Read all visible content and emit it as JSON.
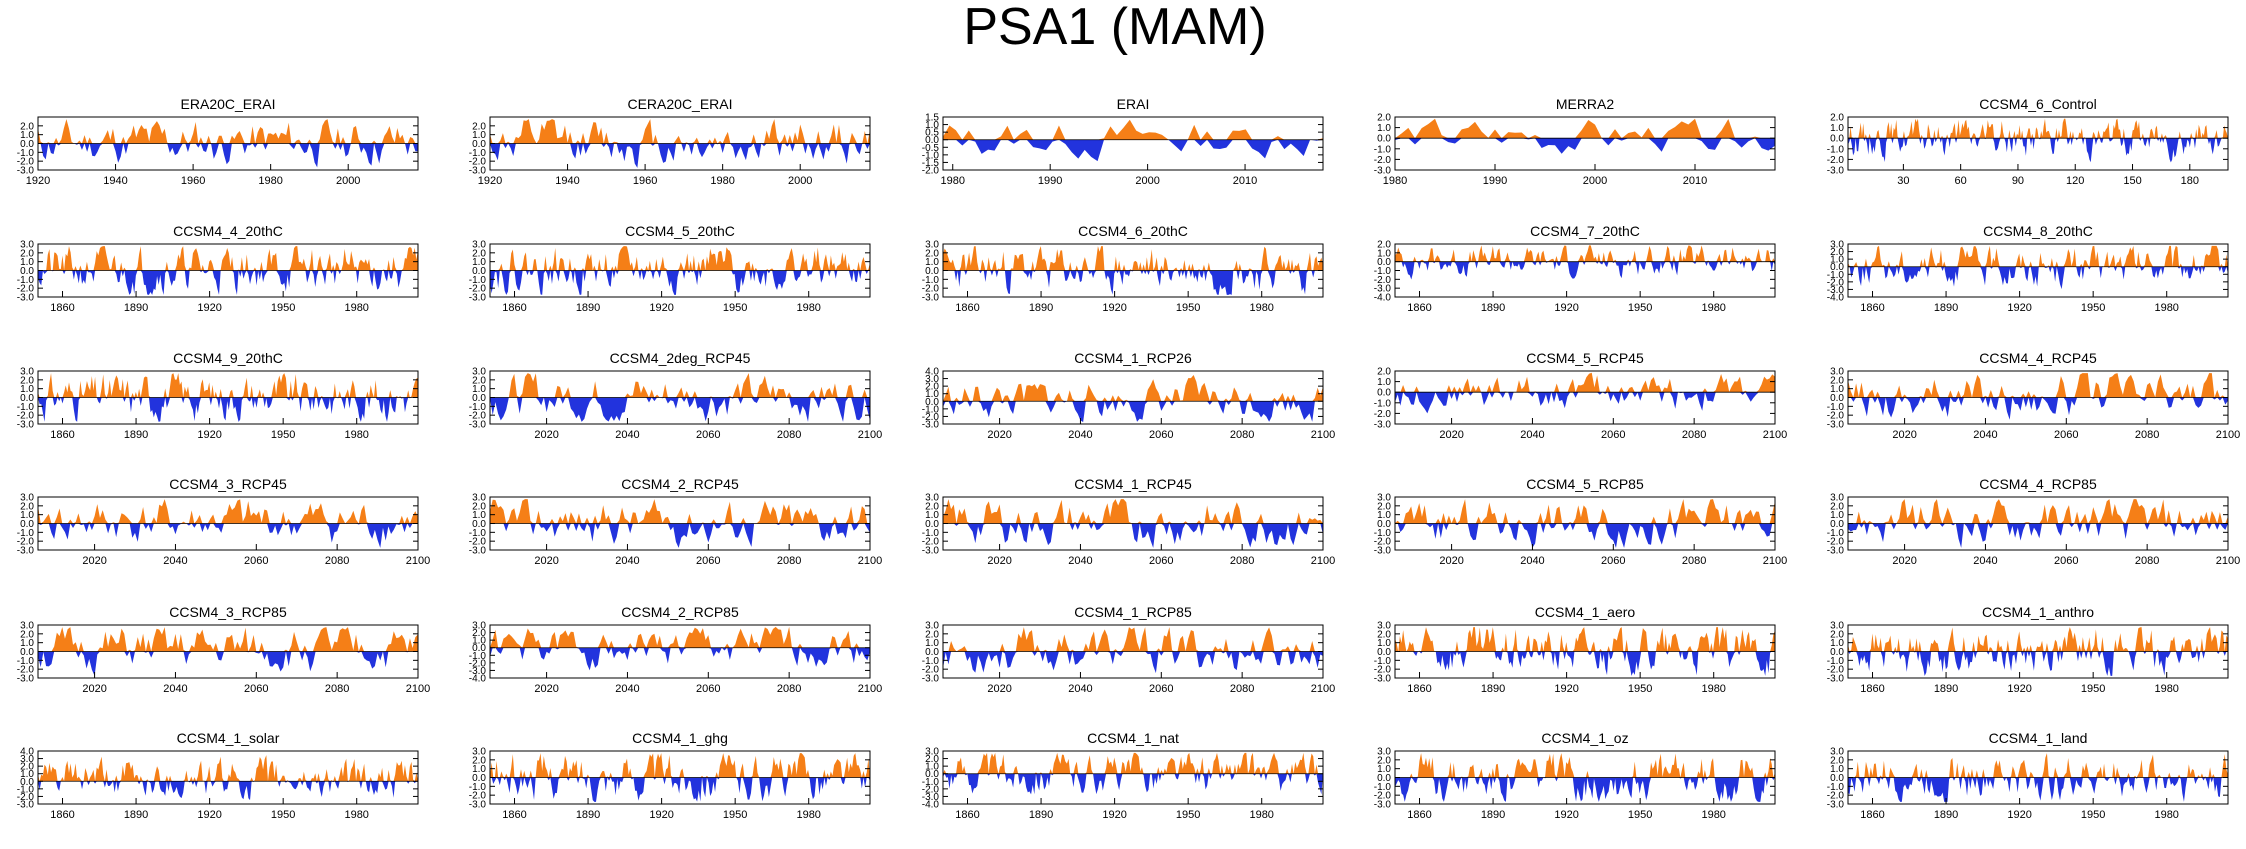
{
  "figure_title": "PSA1 (MAM)",
  "colors": {
    "positive": "#F57F17",
    "negative": "#2233DD",
    "axis": "#000000"
  },
  "chart_data": [
    {
      "type": "area",
      "title": "ERA20C_ERAI",
      "x_start": 1920,
      "x_end": 2018,
      "ylim": [
        -3,
        3
      ],
      "yticks": [
        -3,
        -2,
        -1,
        0,
        1,
        2
      ],
      "xticks": [
        1920,
        1940,
        1960,
        1980,
        2000
      ],
      "series_seed": 11
    },
    {
      "type": "area",
      "title": "CERA20C_ERAI",
      "x_start": 1920,
      "x_end": 2018,
      "ylim": [
        -3,
        3
      ],
      "yticks": [
        -3,
        -2,
        -1,
        0,
        1,
        2
      ],
      "xticks": [
        1920,
        1940,
        1960,
        1980,
        2000
      ],
      "series_seed": 12
    },
    {
      "type": "area",
      "title": "ERAI",
      "x_start": 1979,
      "x_end": 2018,
      "ylim": [
        -2,
        1.5
      ],
      "yticks": [
        -2,
        -1.5,
        -1,
        -0.5,
        0,
        0.5,
        1,
        1.5
      ],
      "xticks": [
        1980,
        1990,
        2000,
        2010
      ],
      "series_seed": 13
    },
    {
      "type": "area",
      "title": "MERRA2",
      "x_start": 1980,
      "x_end": 2018,
      "ylim": [
        -3,
        2
      ],
      "yticks": [
        -3,
        -2,
        -1,
        0,
        1,
        2
      ],
      "xticks": [
        1980,
        1990,
        2000,
        2010
      ],
      "series_seed": 14
    },
    {
      "type": "area",
      "title": "CCSM4_6_Control",
      "x_start": 1,
      "x_end": 200,
      "ylim": [
        -3,
        2
      ],
      "yticks": [
        -3,
        -2,
        -1,
        0,
        1,
        2
      ],
      "xticks": [
        30,
        60,
        90,
        120,
        150,
        180
      ],
      "series_seed": 15
    },
    {
      "type": "area",
      "title": "CCSM4_4_20thC",
      "x_start": 1850,
      "x_end": 2005,
      "ylim": [
        -3,
        3
      ],
      "yticks": [
        -3,
        -2,
        -1,
        0,
        1,
        2,
        3
      ],
      "xticks": [
        1860,
        1890,
        1920,
        1950,
        1980
      ],
      "series_seed": 21
    },
    {
      "type": "area",
      "title": "CCSM4_5_20thC",
      "x_start": 1850,
      "x_end": 2005,
      "ylim": [
        -3,
        3
      ],
      "yticks": [
        -3,
        -2,
        -1,
        0,
        1,
        2,
        3
      ],
      "xticks": [
        1860,
        1890,
        1920,
        1950,
        1980
      ],
      "series_seed": 22
    },
    {
      "type": "area",
      "title": "CCSM4_6_20thC",
      "x_start": 1850,
      "x_end": 2005,
      "ylim": [
        -3,
        3
      ],
      "yticks": [
        -3,
        -2,
        -1,
        0,
        1,
        2,
        3
      ],
      "xticks": [
        1860,
        1890,
        1920,
        1950,
        1980
      ],
      "series_seed": 23
    },
    {
      "type": "area",
      "title": "CCSM4_7_20thC",
      "x_start": 1850,
      "x_end": 2005,
      "ylim": [
        -4,
        2
      ],
      "yticks": [
        -4,
        -3,
        -2,
        -1,
        0,
        1,
        2
      ],
      "xticks": [
        1860,
        1890,
        1920,
        1950,
        1980
      ],
      "series_seed": 24
    },
    {
      "type": "area",
      "title": "CCSM4_8_20thC",
      "x_start": 1850,
      "x_end": 2005,
      "ylim": [
        -4,
        3
      ],
      "yticks": [
        -4,
        -3,
        -2,
        -1,
        0,
        1,
        2,
        3
      ],
      "xticks": [
        1860,
        1890,
        1920,
        1950,
        1980
      ],
      "series_seed": 25
    },
    {
      "type": "area",
      "title": "CCSM4_9_20thC",
      "x_start": 1850,
      "x_end": 2005,
      "ylim": [
        -3,
        3
      ],
      "yticks": [
        -3,
        -2,
        -1,
        0,
        1,
        2,
        3
      ],
      "xticks": [
        1860,
        1890,
        1920,
        1950,
        1980
      ],
      "series_seed": 31
    },
    {
      "type": "area",
      "title": "CCSM4_2deg_RCP45",
      "x_start": 2006,
      "x_end": 2100,
      "ylim": [
        -3,
        3
      ],
      "yticks": [
        -3,
        -2,
        -1,
        0,
        1,
        2,
        3
      ],
      "xticks": [
        2020,
        2040,
        2060,
        2080,
        2100
      ],
      "series_seed": 32
    },
    {
      "type": "area",
      "title": "CCSM4_1_RCP26",
      "x_start": 2006,
      "x_end": 2100,
      "ylim": [
        -3,
        4
      ],
      "yticks": [
        -3,
        -2,
        -1,
        0,
        1,
        2,
        3,
        4
      ],
      "xticks": [
        2020,
        2040,
        2060,
        2080,
        2100
      ],
      "series_seed": 33
    },
    {
      "type": "area",
      "title": "CCSM4_5_RCP45",
      "x_start": 2006,
      "x_end": 2100,
      "ylim": [
        -3,
        2
      ],
      "yticks": [
        -3,
        -2,
        -1,
        0,
        1,
        2
      ],
      "xticks": [
        2020,
        2040,
        2060,
        2080,
        2100
      ],
      "series_seed": 34
    },
    {
      "type": "area",
      "title": "CCSM4_4_RCP45",
      "x_start": 2006,
      "x_end": 2100,
      "ylim": [
        -3,
        3
      ],
      "yticks": [
        -3,
        -2,
        -1,
        0,
        1,
        2,
        3
      ],
      "xticks": [
        2020,
        2040,
        2060,
        2080,
        2100
      ],
      "series_seed": 35
    },
    {
      "type": "area",
      "title": "CCSM4_3_RCP45",
      "x_start": 2006,
      "x_end": 2100,
      "ylim": [
        -3,
        3
      ],
      "yticks": [
        -3,
        -2,
        -1,
        0,
        1,
        2,
        3
      ],
      "xticks": [
        2020,
        2040,
        2060,
        2080,
        2100
      ],
      "series_seed": 41
    },
    {
      "type": "area",
      "title": "CCSM4_2_RCP45",
      "x_start": 2006,
      "x_end": 2100,
      "ylim": [
        -3,
        3
      ],
      "yticks": [
        -3,
        -2,
        -1,
        0,
        1,
        2,
        3
      ],
      "xticks": [
        2020,
        2040,
        2060,
        2080,
        2100
      ],
      "series_seed": 42
    },
    {
      "type": "area",
      "title": "CCSM4_1_RCP45",
      "x_start": 2006,
      "x_end": 2100,
      "ylim": [
        -3,
        3
      ],
      "yticks": [
        -3,
        -2,
        -1,
        0,
        1,
        2,
        3
      ],
      "xticks": [
        2020,
        2040,
        2060,
        2080,
        2100
      ],
      "series_seed": 43
    },
    {
      "type": "area",
      "title": "CCSM4_5_RCP85",
      "x_start": 2006,
      "x_end": 2100,
      "ylim": [
        -3,
        3
      ],
      "yticks": [
        -3,
        -2,
        -1,
        0,
        1,
        2,
        3
      ],
      "xticks": [
        2020,
        2040,
        2060,
        2080,
        2100
      ],
      "series_seed": 44
    },
    {
      "type": "area",
      "title": "CCSM4_4_RCP85",
      "x_start": 2006,
      "x_end": 2100,
      "ylim": [
        -3,
        3
      ],
      "yticks": [
        -3,
        -2,
        -1,
        0,
        1,
        2,
        3
      ],
      "xticks": [
        2020,
        2040,
        2060,
        2080,
        2100
      ],
      "series_seed": 45
    },
    {
      "type": "area",
      "title": "CCSM4_3_RCP85",
      "x_start": 2006,
      "x_end": 2100,
      "ylim": [
        -3,
        3
      ],
      "yticks": [
        -3,
        -2,
        -1,
        0,
        1,
        2,
        3
      ],
      "xticks": [
        2020,
        2040,
        2060,
        2080,
        2100
      ],
      "series_seed": 51
    },
    {
      "type": "area",
      "title": "CCSM4_2_RCP85",
      "x_start": 2006,
      "x_end": 2100,
      "ylim": [
        -4,
        3
      ],
      "yticks": [
        -4,
        -3,
        -2,
        -1,
        0,
        1,
        2,
        3
      ],
      "xticks": [
        2020,
        2040,
        2060,
        2080,
        2100
      ],
      "series_seed": 52
    },
    {
      "type": "area",
      "title": "CCSM4_1_RCP85",
      "x_start": 2006,
      "x_end": 2100,
      "ylim": [
        -3,
        3
      ],
      "yticks": [
        -3,
        -2,
        -1,
        0,
        1,
        2,
        3
      ],
      "xticks": [
        2020,
        2040,
        2060,
        2080,
        2100
      ],
      "series_seed": 53
    },
    {
      "type": "area",
      "title": "CCSM4_1_aero",
      "x_start": 1850,
      "x_end": 2005,
      "ylim": [
        -3,
        3
      ],
      "yticks": [
        -3,
        -2,
        -1,
        0,
        1,
        2,
        3
      ],
      "xticks": [
        1860,
        1890,
        1920,
        1950,
        1980
      ],
      "series_seed": 54
    },
    {
      "type": "area",
      "title": "CCSM4_1_anthro",
      "x_start": 1850,
      "x_end": 2005,
      "ylim": [
        -3,
        3
      ],
      "yticks": [
        -3,
        -2,
        -1,
        0,
        1,
        2,
        3
      ],
      "xticks": [
        1860,
        1890,
        1920,
        1950,
        1980
      ],
      "series_seed": 55
    },
    {
      "type": "area",
      "title": "CCSM4_1_solar",
      "x_start": 1850,
      "x_end": 2005,
      "ylim": [
        -3,
        4
      ],
      "yticks": [
        -3,
        -2,
        -1,
        0,
        1,
        2,
        3,
        4
      ],
      "xticks": [
        1860,
        1890,
        1920,
        1950,
        1980
      ],
      "series_seed": 61
    },
    {
      "type": "area",
      "title": "CCSM4_1_ghg",
      "x_start": 1850,
      "x_end": 2005,
      "ylim": [
        -3,
        3
      ],
      "yticks": [
        -3,
        -2,
        -1,
        0,
        1,
        2,
        3
      ],
      "xticks": [
        1860,
        1890,
        1920,
        1950,
        1980
      ],
      "series_seed": 62
    },
    {
      "type": "area",
      "title": "CCSM4_1_nat",
      "x_start": 1850,
      "x_end": 2005,
      "ylim": [
        -4,
        3
      ],
      "yticks": [
        -4,
        -3,
        -2,
        -1,
        0,
        1,
        2,
        3
      ],
      "xticks": [
        1860,
        1890,
        1920,
        1950,
        1980
      ],
      "series_seed": 63
    },
    {
      "type": "area",
      "title": "CCSM4_1_oz",
      "x_start": 1850,
      "x_end": 2005,
      "ylim": [
        -3,
        3
      ],
      "yticks": [
        -3,
        -2,
        -1,
        0,
        1,
        2,
        3
      ],
      "xticks": [
        1860,
        1890,
        1920,
        1950,
        1980
      ],
      "series_seed": 64
    },
    {
      "type": "area",
      "title": "CCSM4_1_land",
      "x_start": 1850,
      "x_end": 2005,
      "ylim": [
        -3,
        3
      ],
      "yticks": [
        -3,
        -2,
        -1,
        0,
        1,
        2,
        3
      ],
      "xticks": [
        1860,
        1890,
        1920,
        1950,
        1980
      ],
      "series_seed": 65
    }
  ]
}
